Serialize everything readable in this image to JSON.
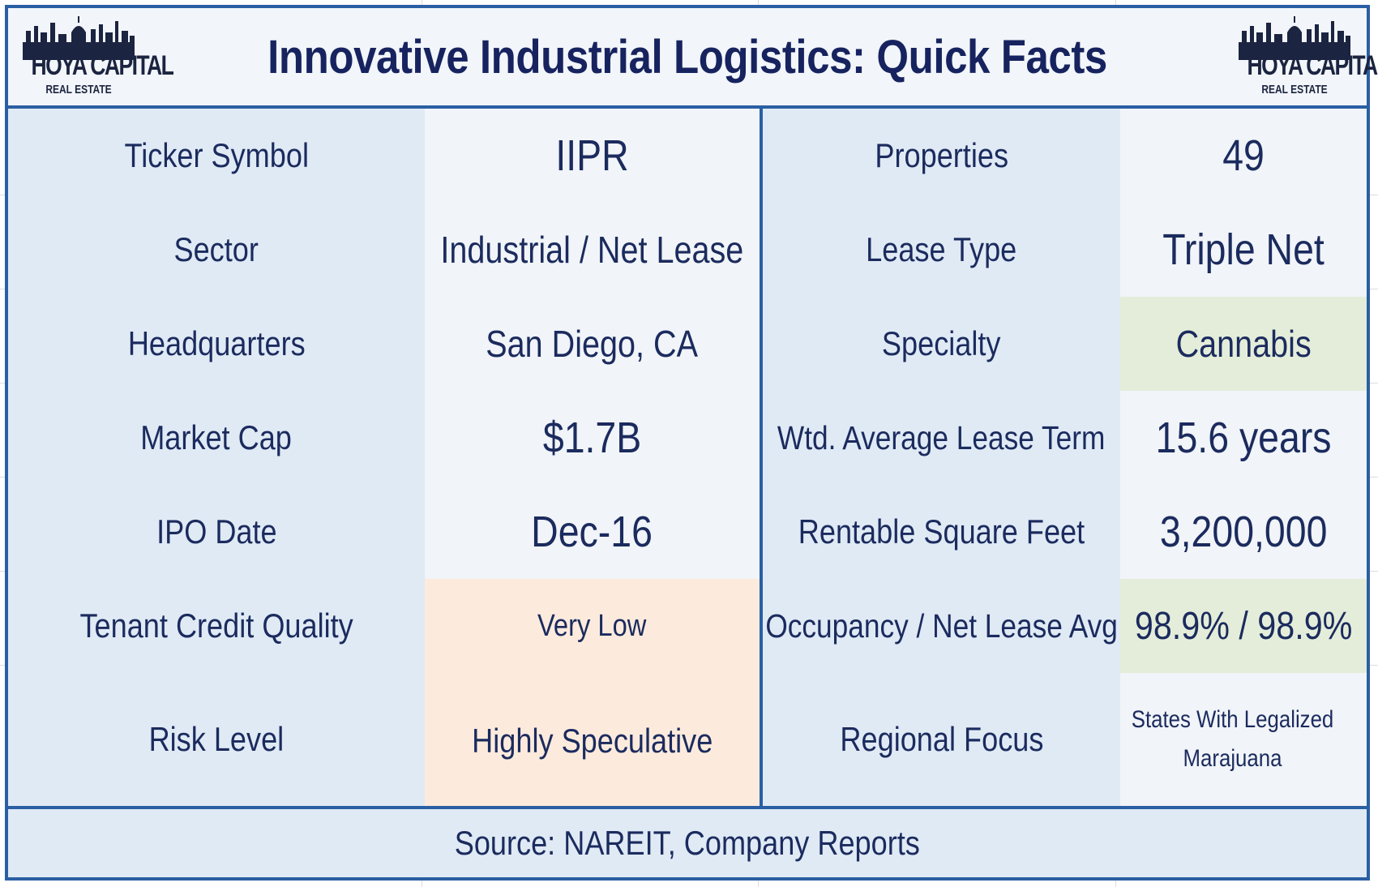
{
  "title": "Innovative Industrial Logistics: Quick Facts",
  "logo": {
    "brand": "HOYA CAPITAL",
    "sub": "REAL ESTATE"
  },
  "left_rows": [
    {
      "label": "Ticker Symbol",
      "value": "IIPR"
    },
    {
      "label": "Sector",
      "value": "Industrial / Net Lease"
    },
    {
      "label": "Headquarters",
      "value": "San Diego, CA"
    },
    {
      "label": "Market Cap",
      "value": "$1.7B"
    },
    {
      "label": "IPO Date",
      "value": "Dec-16"
    },
    {
      "label": "Tenant Credit Quality",
      "value": "Very Low"
    },
    {
      "label": "Risk Level",
      "value": "Highly Speculative"
    }
  ],
  "right_rows": [
    {
      "label": "Properties",
      "value": "49"
    },
    {
      "label": "Lease Type",
      "value": "Triple Net"
    },
    {
      "label": "Specialty",
      "value": "Cannabis"
    },
    {
      "label": "Wtd. Average Lease Term",
      "value": "15.6 years"
    },
    {
      "label": "Rentable Square Feet",
      "value": "3,200,000"
    },
    {
      "label": "Occupancy / Net Lease Avg",
      "value": "98.9% / 98.9%"
    },
    {
      "label": "Regional Focus",
      "value": "States With Legalized Marajuana"
    }
  ],
  "highlight_colors": {
    "orange": "#fcebdd",
    "green": "#e4edd9",
    "border": "#2a5fa3"
  },
  "footer": "Source: NAREIT, Company Reports"
}
